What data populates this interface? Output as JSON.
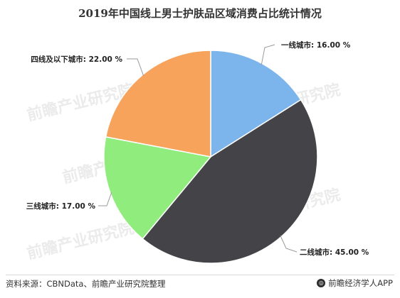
{
  "chart_data": {
    "type": "pie",
    "title": "2019年中国线上男士护肤品区域消费占比统计情况",
    "slices": [
      {
        "label": "一线城市",
        "value": 16.0,
        "display": "16.00 %",
        "color": "#7cb5ec"
      },
      {
        "label": "二线城市",
        "value": 45.0,
        "display": "45.00 %",
        "color": "#434348"
      },
      {
        "label": "三线城市",
        "value": 17.0,
        "display": "17.00 %",
        "color": "#90ed7d"
      },
      {
        "label": "四线及以下城市",
        "value": 22.0,
        "display": "22.00 %",
        "color": "#f7a35c"
      }
    ],
    "legend": "none"
  },
  "footer": {
    "source_label": "资料来源：",
    "source_text": "CBNData、前瞻产业研究院整理",
    "brand_icon": "qianzhan-logo-icon",
    "brand": "前瞻经济学人APP"
  },
  "watermark": "前瞻产业研究院"
}
